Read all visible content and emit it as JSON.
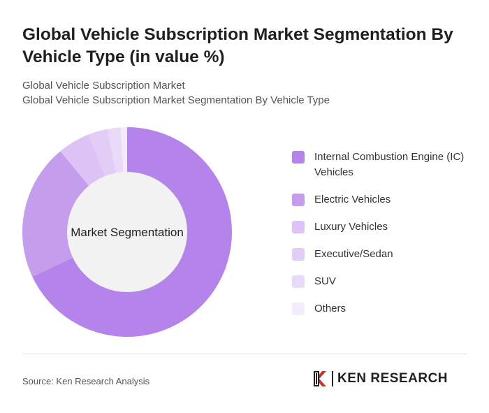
{
  "title": "Global Vehicle Subscription Market Segmentation By Vehicle Type (in value %)",
  "subtitle_1": "Global Vehicle Subscription Market",
  "subtitle_2": "Global Vehicle Subscription Market Segmentation By Vehicle Type",
  "source": "Source: Ken Research Analysis",
  "logo_text": "KEN RESEARCH",
  "chart_data": {
    "type": "pie",
    "donut": true,
    "center_label": "Market Segmentation",
    "legend_position": "right",
    "categories": [
      "Internal Combustion Engine (IC) Vehicles",
      "Electric Vehicles",
      "Luxury Vehicles",
      "Executive/Sedan",
      "SUV",
      "Others"
    ],
    "values": [
      68,
      21,
      5,
      3,
      2,
      1
    ],
    "colors": [
      "#b584ea",
      "#c49ded",
      "#dcc2f5",
      "#e2cdf7",
      "#e9daf9",
      "#f3ecfc"
    ]
  }
}
